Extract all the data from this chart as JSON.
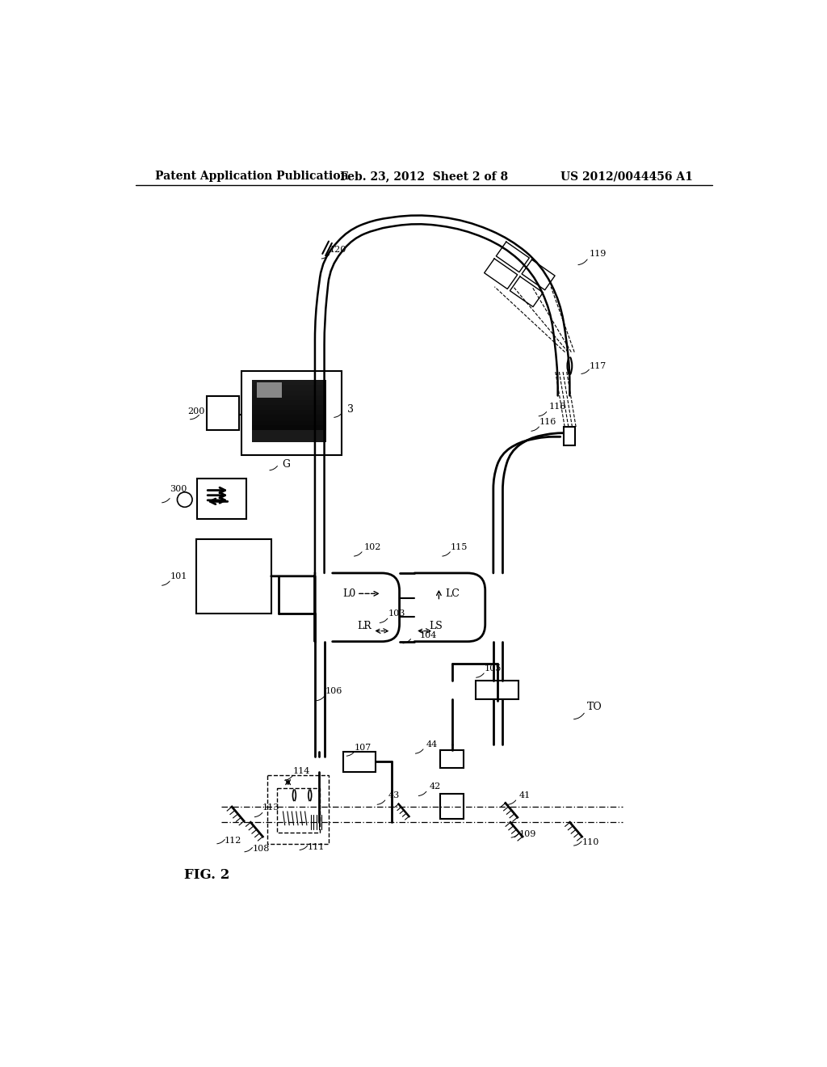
{
  "title_left": "Patent Application Publication",
  "title_center": "Feb. 23, 2012  Sheet 2 of 8",
  "title_right": "US 2012/0044456 A1",
  "fig_label": "FIG. 2",
  "background": "#ffffff"
}
